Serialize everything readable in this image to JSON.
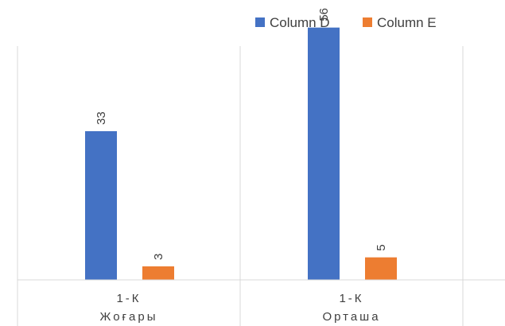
{
  "chart_data": {
    "type": "bar",
    "title": "",
    "xlabel": "",
    "ylabel": "",
    "ylim": [
      0,
      60
    ],
    "grid": "vertical separators only",
    "legend_position": "top-right",
    "categories": [
      {
        "line1": "1-К",
        "line2": "Жоғары"
      },
      {
        "line1": "1-К",
        "line2": "Орташа"
      }
    ],
    "series": [
      {
        "name": "Column D",
        "color": "#4472C4",
        "values": [
          33,
          56
        ]
      },
      {
        "name": "Column E",
        "color": "#ED7D31",
        "values": [
          3,
          5
        ]
      }
    ]
  }
}
